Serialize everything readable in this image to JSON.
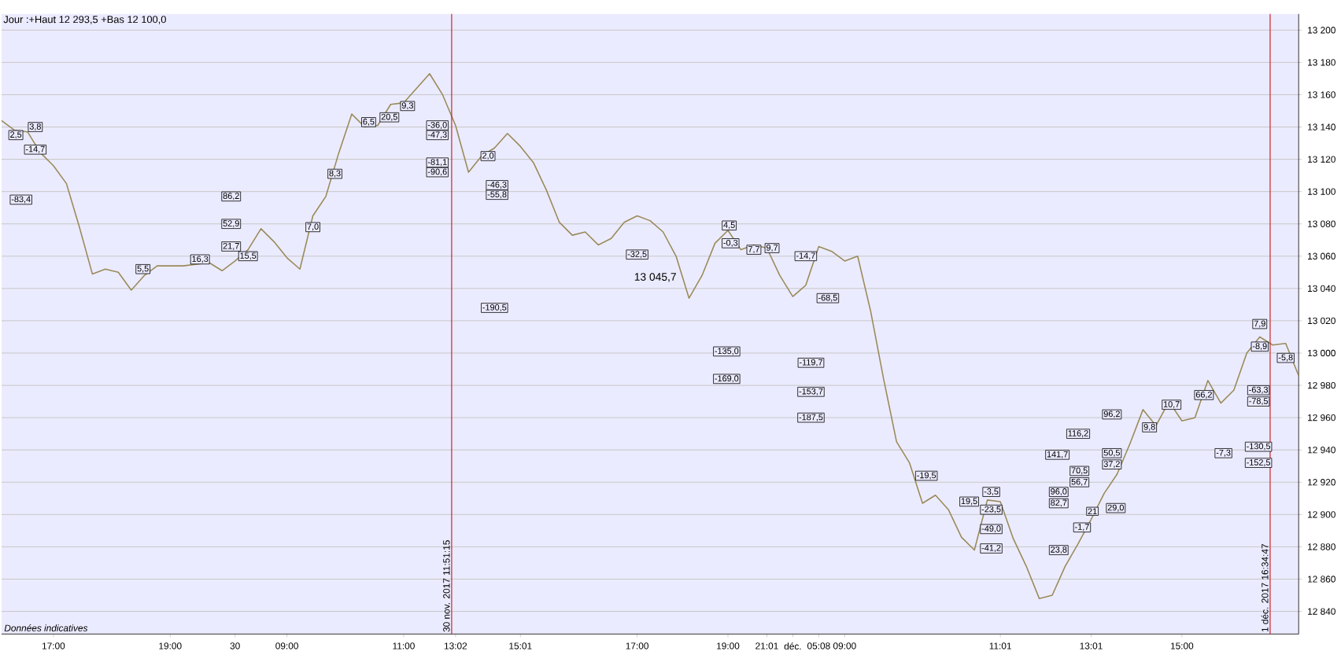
{
  "chart_data": {
    "type": "line",
    "title": "Jour :+Haut 12 293,5 +Bas 12 100,0",
    "categories": [
      null,
      null,
      null,
      null,
      "17:00",
      null,
      null,
      null,
      null,
      null,
      null,
      null,
      null,
      "19:00",
      null,
      null,
      null,
      null,
      "30",
      null,
      null,
      null,
      "09:00",
      null,
      null,
      null,
      null,
      null,
      null,
      null,
      null,
      "11:00",
      null,
      null,
      null,
      "13:02",
      null,
      null,
      null,
      null,
      "15:01",
      null,
      null,
      null,
      null,
      null,
      null,
      null,
      null,
      "17:00",
      null,
      null,
      null,
      null,
      null,
      null,
      "19:00",
      null,
      null,
      "21:01",
      null,
      "déc.",
      null,
      "05:08",
      null,
      "09:00",
      null,
      null,
      null,
      null,
      null,
      null,
      null,
      null,
      null,
      null,
      null,
      "11:01",
      null,
      null,
      null,
      null,
      null,
      null,
      "13:01",
      null,
      null,
      null,
      null,
      null,
      null,
      "15:00",
      null,
      null,
      null,
      null,
      null,
      null,
      null,
      null,
      null
    ],
    "ylim": [
      12826,
      13210
    ],
    "yticks": [
      {
        "value": 12840,
        "label": "12 840"
      },
      {
        "value": 12860,
        "label": "12 860"
      },
      {
        "value": 12880,
        "label": "12 880"
      },
      {
        "value": 12900,
        "label": "12 900"
      },
      {
        "value": 12920,
        "label": "12 920"
      },
      {
        "value": 12940,
        "label": "12 940"
      },
      {
        "value": 12960,
        "label": "12 960"
      },
      {
        "value": 12980,
        "label": "12 980"
      },
      {
        "value": 13000,
        "label": "13 000"
      },
      {
        "value": 13020,
        "label": "13 020"
      },
      {
        "value": 13040,
        "label": "13 040"
      },
      {
        "value": 13060,
        "label": "13 060"
      },
      {
        "value": 13080,
        "label": "13 080"
      },
      {
        "value": 13100,
        "label": "13 100"
      },
      {
        "value": 13120,
        "label": "13 120"
      },
      {
        "value": 13140,
        "label": "13 140"
      },
      {
        "value": 13160,
        "label": "13 160"
      },
      {
        "value": 13180,
        "label": "13 180"
      },
      {
        "value": 13200,
        "label": "13 200"
      }
    ],
    "grid": "y",
    "marker": "none",
    "line_style": "solid",
    "series": [
      {
        "color": "#9a8a5a",
        "values": [
          13144,
          13138,
          13137,
          13124,
          13116,
          13105,
          13078,
          13049,
          13052,
          13050,
          13039,
          13048,
          13054,
          13054,
          13054,
          13055,
          13056,
          13051,
          13057,
          13064,
          13077,
          13069,
          13059,
          13052,
          13085,
          13097,
          13124,
          13148,
          13140,
          13141,
          13154,
          13155,
          13164,
          13173,
          13160,
          13141,
          13112,
          13122,
          13127,
          13136,
          13128,
          13118,
          13101,
          13081,
          13073,
          13075,
          13067,
          13071,
          13081,
          13085,
          13082,
          13075,
          13060,
          13034,
          13048,
          13068,
          13076,
          13064,
          13067,
          13065,
          13048,
          13035,
          13042,
          13066,
          13063,
          13057,
          13060,
          13026,
          12984,
          12945,
          12932,
          12907,
          12912,
          12903,
          12886,
          12878,
          12909,
          12908,
          12885,
          12868,
          12848,
          12850,
          12868,
          12882,
          12897,
          12913,
          12925,
          12944,
          12965,
          12955,
          12970,
          12958,
          12960,
          12983,
          12969,
          12977,
          13000,
          13010,
          13005,
          13006,
          12986
        ]
      }
    ],
    "annotations": [
      "Données indicatives",
      "30 nov. 2017 11:51:15",
      "1 déc. 2017 16:34:47",
      "13 045,7",
      {
        "text": "3,8",
        "y": 13140
      },
      {
        "text": "2,5",
        "y": 13135
      },
      {
        "text": "-14,7",
        "y": 13126
      },
      {
        "text": "-83,4",
        "y": 13095
      },
      {
        "text": "5,5",
        "y": 13052
      },
      {
        "text": "16,3",
        "y": 13058
      },
      {
        "text": "86,2",
        "y": 13097
      },
      {
        "text": "52,9",
        "y": 13080
      },
      {
        "text": "21,7",
        "y": 13066
      },
      {
        "text": "15,5",
        "y": 13060
      },
      {
        "text": "7,0",
        "y": 13078
      },
      {
        "text": "8,3",
        "y": 13111
      },
      {
        "text": "6,5",
        "y": 13143
      },
      {
        "text": "20,5",
        "y": 13146
      },
      {
        "text": "9,3",
        "y": 13153
      },
      {
        "text": "-36,0",
        "y": 13141
      },
      {
        "text": "-47,3",
        "y": 13135
      },
      {
        "text": "-81,1",
        "y": 13118
      },
      {
        "text": "-90,6",
        "y": 13112
      },
      {
        "text": "2,0",
        "y": 13122
      },
      {
        "text": "-46,3",
        "y": 13104
      },
      {
        "text": "-55,8",
        "y": 13098
      },
      {
        "text": "-190,5",
        "y": 13028
      },
      {
        "text": "-32,5",
        "y": 13061
      },
      {
        "text": "4,5",
        "y": 13079
      },
      {
        "text": "-0,3",
        "y": 13068
      },
      {
        "text": "7,7",
        "y": 13064
      },
      {
        "text": "9,7",
        "y": 13065
      },
      {
        "text": "-14,7",
        "y": 13060
      },
      {
        "text": "-68,5",
        "y": 13034
      },
      {
        "text": "-135,0",
        "y": 13001
      },
      {
        "text": "-169,0",
        "y": 12984
      },
      {
        "text": "-119,7",
        "y": 12994
      },
      {
        "text": "-153,7",
        "y": 12976
      },
      {
        "text": "-187,5",
        "y": 12960
      },
      {
        "text": "-19,5",
        "y": 12924
      },
      {
        "text": "19,5",
        "y": 12908
      },
      {
        "text": "-3,5",
        "y": 12914
      },
      {
        "text": "-23,5",
        "y": 12903
      },
      {
        "text": "-49,0",
        "y": 12891
      },
      {
        "text": "-41,2",
        "y": 12879
      },
      {
        "text": "23,8",
        "y": 12878
      },
      {
        "text": "96,0",
        "y": 12914
      },
      {
        "text": "82,7",
        "y": 12907
      },
      {
        "text": "141,7",
        "y": 12937
      },
      {
        "text": "116,2",
        "y": 12950
      },
      {
        "text": "96,2",
        "y": 12962
      },
      {
        "text": "70,5",
        "y": 12927
      },
      {
        "text": "56,7",
        "y": 12920
      },
      {
        "text": "-1,7",
        "y": 12892
      },
      {
        "text": "21",
        "y": 12902
      },
      {
        "text": "29,0",
        "y": 12904
      },
      {
        "text": "50,5",
        "y": 12938
      },
      {
        "text": "37,2",
        "y": 12931
      },
      {
        "text": "9,8",
        "y": 12954
      },
      {
        "text": "10,7",
        "y": 12968
      },
      {
        "text": "66,2",
        "y": 12974
      },
      {
        "text": "-7,3",
        "y": 12938
      },
      {
        "text": "-63,3",
        "y": 12977
      },
      {
        "text": "-78,5",
        "y": 12970
      },
      {
        "text": "-130,5",
        "y": 12942
      },
      {
        "text": "-152,5",
        "y": 12932
      },
      {
        "text": "7,9",
        "y": 13018
      },
      {
        "text": "-8,9",
        "y": 13004
      },
      {
        "text": "-5,8",
        "y": 12997
      }
    ]
  }
}
